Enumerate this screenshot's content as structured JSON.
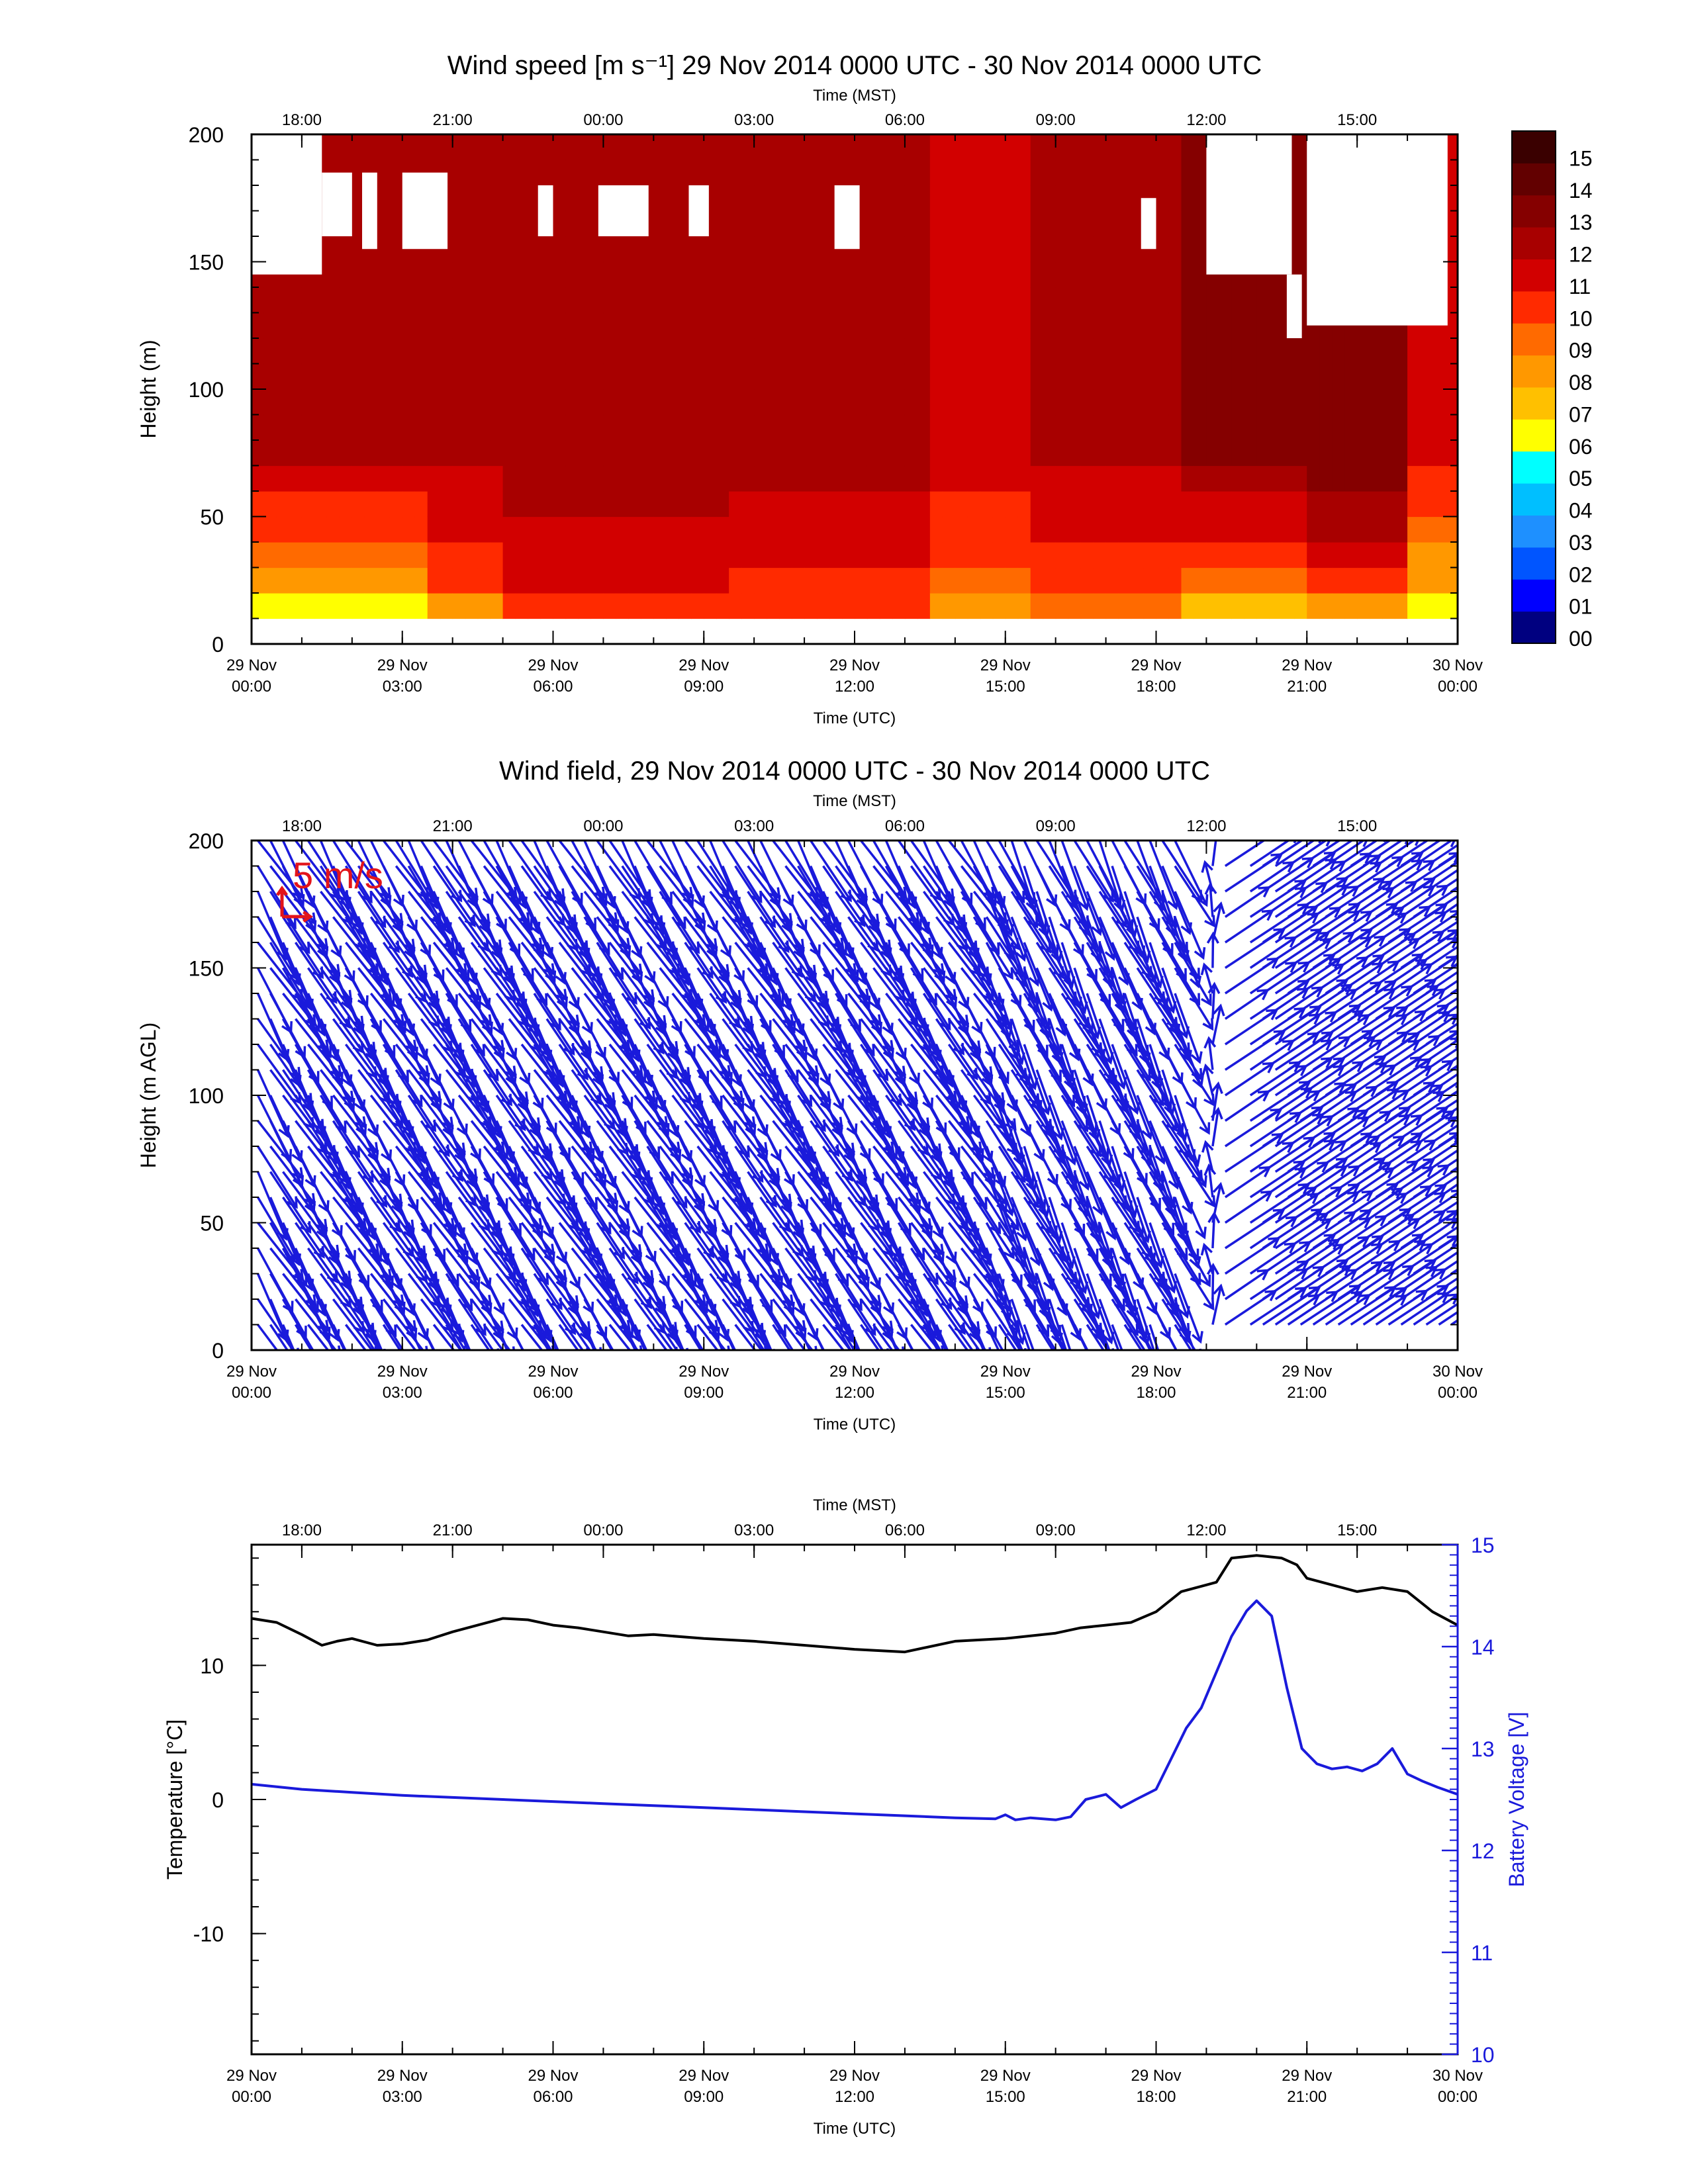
{
  "figure": {
    "panel1_title": "Wind speed [m s⁻¹] 29 Nov 2014 0000 UTC - 30 Nov 2014 0000 UTC",
    "panel2_title": "Wind field, 29 Nov 2014 0000 UTC - 30 Nov 2014 0000 UTC",
    "x_bottom_label": "Time (UTC)",
    "x_top_label": "Time (MST)",
    "x_bottom_ticks": [
      [
        "29 Nov",
        "00:00"
      ],
      [
        "29 Nov",
        "03:00"
      ],
      [
        "29 Nov",
        "06:00"
      ],
      [
        "29 Nov",
        "09:00"
      ],
      [
        "29 Nov",
        "12:00"
      ],
      [
        "29 Nov",
        "15:00"
      ],
      [
        "29 Nov",
        "18:00"
      ],
      [
        "29 Nov",
        "21:00"
      ],
      [
        "30 Nov",
        "00:00"
      ]
    ],
    "x_bottom_tick_hours": [
      0,
      3,
      6,
      9,
      12,
      15,
      18,
      21,
      24
    ],
    "x_top_ticks": [
      "18:00",
      "21:00",
      "00:00",
      "03:00",
      "06:00",
      "09:00",
      "12:00",
      "15:00"
    ],
    "x_top_tick_hours": [
      1,
      4,
      7,
      10,
      13,
      16,
      19,
      22
    ]
  },
  "chart_data": [
    {
      "type": "heatmap",
      "title": "Wind speed [m s⁻¹] 29 Nov 2014 0000 UTC - 30 Nov 2014 0000 UTC",
      "xlabel": "Time (UTC)",
      "ylabel": "Height (m)",
      "xlim": [
        0,
        24
      ],
      "ylim": [
        0,
        200
      ],
      "yticks": [
        0,
        50,
        100,
        150,
        200
      ],
      "colorbar_labels": [
        "00",
        "01",
        "02",
        "03",
        "04",
        "05",
        "06",
        "07",
        "08",
        "09",
        "10",
        "11",
        "12",
        "13",
        "14",
        "15"
      ],
      "colorbar_colors": [
        "#000080",
        "#0000ff",
        "#0055ff",
        "#1e90ff",
        "#00bfff",
        "#00ffff",
        "#ffff00",
        "#ffc000",
        "#ff9800",
        "#ff6a00",
        "#ff2a00",
        "#d20000",
        "#a80000",
        "#850000",
        "#620000",
        "#3a0000"
      ],
      "data_min_height_m": 10,
      "height_bins_m": [
        10,
        20,
        30,
        40,
        50,
        60,
        70,
        80,
        90,
        100,
        110,
        120,
        130,
        140,
        150,
        160,
        170,
        180,
        190,
        200
      ],
      "speed_profiles": [
        {
          "hours": [
            0,
            3.3
          ],
          "surface_mps": 6.5,
          "top_mps": 12.0
        },
        {
          "hours": [
            3.3,
            4.8
          ],
          "surface_mps": 8.5,
          "top_mps": 12.2
        },
        {
          "hours": [
            4.8,
            9.5
          ],
          "surface_mps": 10.5,
          "top_mps": 12.5
        },
        {
          "hours": [
            9.5,
            13.5
          ],
          "surface_mps": 10.0,
          "top_mps": 12.3
        },
        {
          "hours": [
            13.5,
            15.5
          ],
          "surface_mps": 8.0,
          "top_mps": 11.5
        },
        {
          "hours": [
            15.5,
            18.5
          ],
          "surface_mps": 9.0,
          "top_mps": 12.0
        },
        {
          "hours": [
            18.5,
            21.0
          ],
          "surface_mps": 7.5,
          "top_mps": 13.0
        },
        {
          "hours": [
            21.0,
            23.0
          ],
          "surface_mps": 8.5,
          "top_mps": 13.5
        },
        {
          "hours": [
            23.0,
            24.0
          ],
          "surface_mps": 6.0,
          "top_mps": 11.0
        }
      ],
      "missing_data_regions": [
        {
          "hours": [
            0.0,
            1.4
          ],
          "heights_m": [
            145,
            200
          ]
        },
        {
          "hours": [
            1.4,
            2.0
          ],
          "heights_m": [
            160,
            185
          ]
        },
        {
          "hours": [
            2.2,
            2.5
          ],
          "heights_m": [
            155,
            185
          ]
        },
        {
          "hours": [
            3.0,
            3.9
          ],
          "heights_m": [
            155,
            185
          ]
        },
        {
          "hours": [
            5.7,
            6.0
          ],
          "heights_m": [
            160,
            180
          ]
        },
        {
          "hours": [
            6.9,
            7.9
          ],
          "heights_m": [
            160,
            180
          ]
        },
        {
          "hours": [
            8.7,
            9.1
          ],
          "heights_m": [
            160,
            180
          ]
        },
        {
          "hours": [
            11.6,
            12.1
          ],
          "heights_m": [
            155,
            180
          ]
        },
        {
          "hours": [
            17.7,
            18.0
          ],
          "heights_m": [
            155,
            175
          ]
        },
        {
          "hours": [
            19.0,
            20.7
          ],
          "heights_m": [
            145,
            200
          ]
        },
        {
          "hours": [
            20.6,
            20.9
          ],
          "heights_m": [
            120,
            145
          ]
        },
        {
          "hours": [
            21.0,
            23.8
          ],
          "heights_m": [
            125,
            200
          ]
        }
      ]
    },
    {
      "type": "scatter",
      "title": "Wind field, 29 Nov 2014 0000 UTC - 30 Nov 2014 0000 UTC",
      "xlabel": "Time (UTC)",
      "ylabel": "Height (m AGL)",
      "xlim": [
        0,
        24
      ],
      "ylim": [
        0,
        200
      ],
      "yticks": [
        0,
        50,
        100,
        150,
        200
      ],
      "reference_vector_label": "5 m/s",
      "reference_vector_mps": 5,
      "vector_color": "#1a1adb",
      "height_levels_m": [
        10,
        20,
        30,
        40,
        50,
        60,
        70,
        80,
        90,
        100,
        110,
        120,
        130,
        140,
        150,
        160,
        170,
        180,
        190,
        200
      ],
      "time_step_h": 0.25,
      "segments": [
        {
          "hours": [
            0,
            14.5
          ],
          "u_mps": 6.5,
          "v_mps": -11.0
        },
        {
          "hours": [
            14.5,
            18.4
          ],
          "u_mps": 5.5,
          "v_mps": -11.5
        },
        {
          "hours": [
            18.4,
            19.3
          ],
          "u_mps": 0.0,
          "v_mps": 6.0
        },
        {
          "hours": [
            19.3,
            24
          ],
          "u_mps": 9.0,
          "v_mps": 6.0
        }
      ],
      "missing_hours": [
        [
          18.45,
          18.95
        ],
        [
          19.4,
          19.65
        ]
      ]
    },
    {
      "type": "line",
      "xlabel": "Time (UTC)",
      "ylabel": "Temperature [°C]",
      "y2label": "Battery Voltage [V]",
      "xlim": [
        0,
        24
      ],
      "ylim": [
        -19,
        19
      ],
      "yticks": [
        -10,
        0,
        10
      ],
      "y2lim": [
        10,
        15
      ],
      "y2ticks": [
        10,
        11,
        12,
        13,
        14,
        15
      ],
      "series": [
        {
          "axis": "left",
          "color": "#000000",
          "x": [
            0,
            0.5,
            1.0,
            1.4,
            1.7,
            2.0,
            2.5,
            3.0,
            3.5,
            4.0,
            4.5,
            5.0,
            5.5,
            6.0,
            6.5,
            7.0,
            7.5,
            8.0,
            9.0,
            10.0,
            11.0,
            12.0,
            13.0,
            14.0,
            15.0,
            16.0,
            16.5,
            17.0,
            17.5,
            18.0,
            18.5,
            19.0,
            19.2,
            19.5,
            20.0,
            20.5,
            20.8,
            21.0,
            21.5,
            22.0,
            22.5,
            23.0,
            23.5,
            24.0
          ],
          "y": [
            13.5,
            13.2,
            12.3,
            11.5,
            11.8,
            12.0,
            11.5,
            11.6,
            11.9,
            12.5,
            13.0,
            13.5,
            13.4,
            13.0,
            12.8,
            12.5,
            12.2,
            12.3,
            12.0,
            11.8,
            11.5,
            11.2,
            11.0,
            11.8,
            12.0,
            12.4,
            12.8,
            13.0,
            13.2,
            14.0,
            15.5,
            16.0,
            16.2,
            18.0,
            18.2,
            18.0,
            17.5,
            16.5,
            16.0,
            15.5,
            15.8,
            15.5,
            14.0,
            13.0
          ]
        },
        {
          "axis": "right",
          "color": "#1a1adb",
          "x": [
            0,
            1,
            2,
            3,
            4,
            5,
            6,
            7,
            8,
            9,
            10,
            11,
            12,
            13,
            14,
            14.8,
            15.0,
            15.2,
            15.5,
            16.0,
            16.3,
            16.6,
            17.0,
            17.3,
            17.6,
            18.0,
            18.3,
            18.6,
            18.9,
            19.2,
            19.5,
            19.8,
            20.0,
            20.3,
            20.6,
            20.9,
            21.2,
            21.5,
            21.8,
            22.1,
            22.4,
            22.7,
            23.0,
            23.3,
            23.6,
            24.0
          ],
          "y": [
            12.65,
            12.6,
            12.57,
            12.54,
            12.52,
            12.5,
            12.48,
            12.46,
            12.44,
            12.42,
            12.4,
            12.38,
            12.36,
            12.34,
            12.32,
            12.31,
            12.35,
            12.3,
            12.32,
            12.3,
            12.33,
            12.5,
            12.55,
            12.42,
            12.5,
            12.6,
            12.9,
            13.2,
            13.4,
            13.75,
            14.1,
            14.35,
            14.45,
            14.3,
            13.6,
            13.0,
            12.85,
            12.8,
            12.82,
            12.78,
            12.85,
            13.0,
            12.75,
            12.68,
            12.62,
            12.55
          ]
        }
      ]
    }
  ]
}
